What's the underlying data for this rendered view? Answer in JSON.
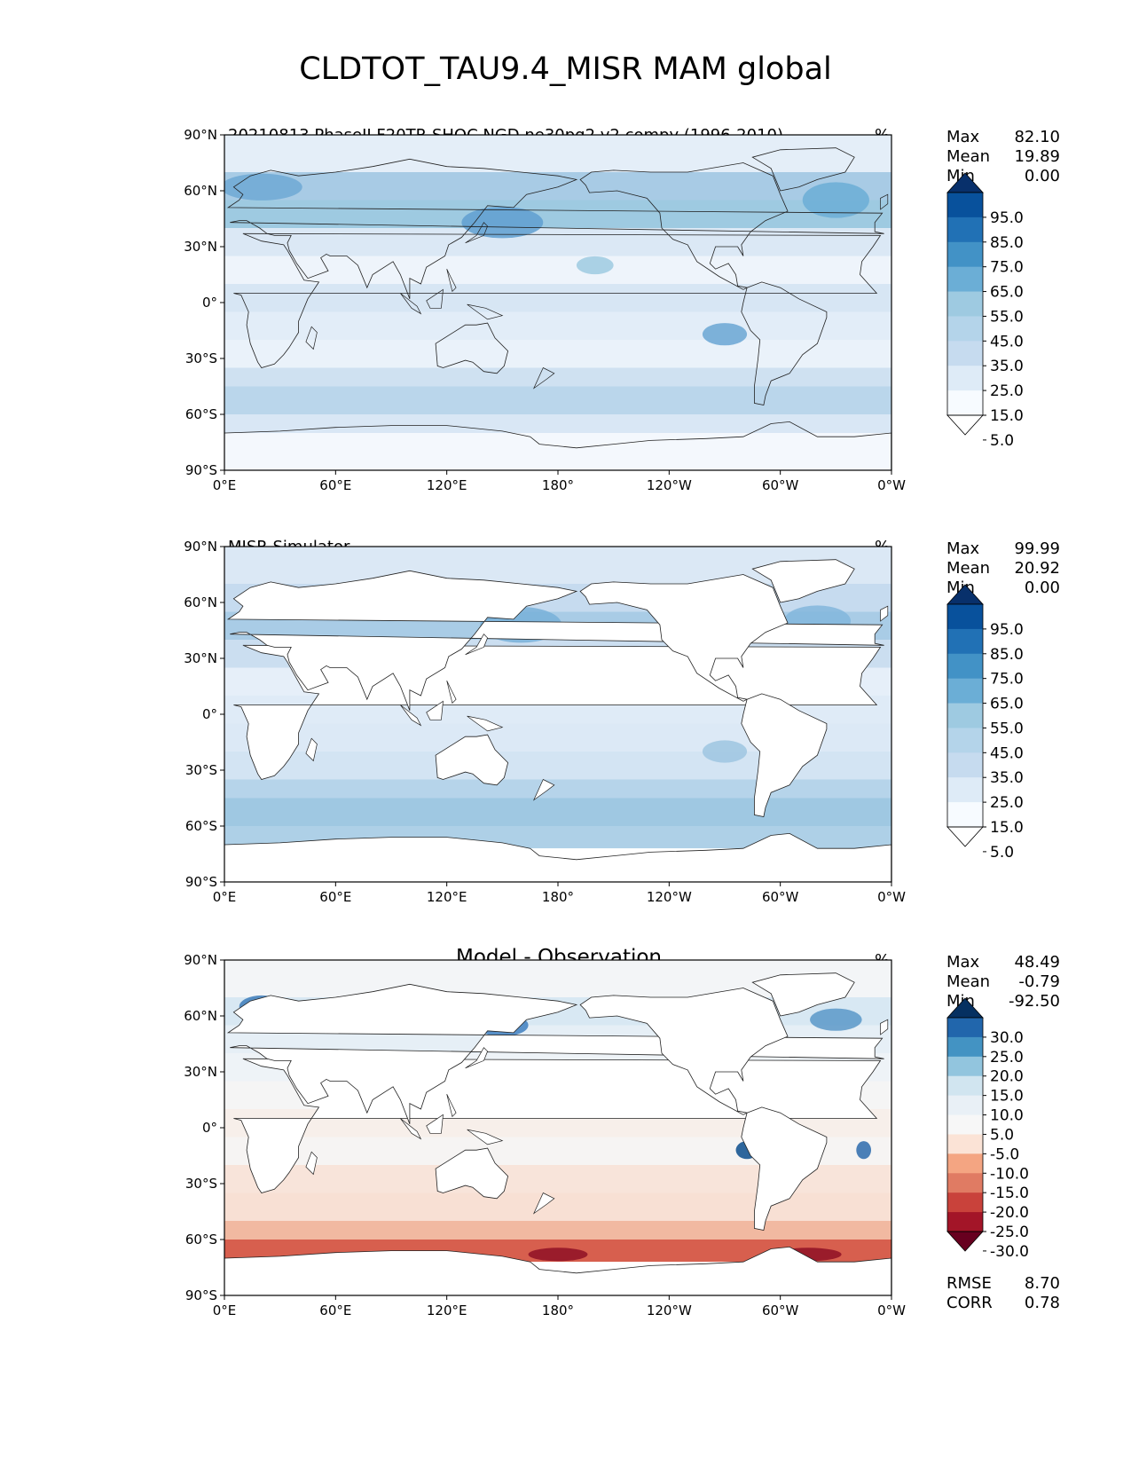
{
  "title": "CLDTOT_TAU9.4_MISR MAM global",
  "axes": {
    "lat_labels": [
      "90°N",
      "60°N",
      "30°N",
      "0°",
      "30°S",
      "60°S",
      "90°S"
    ],
    "lon_labels": [
      "0°E",
      "60°E",
      "120°E",
      "180°",
      "120°W",
      "60°W",
      "0°W"
    ]
  },
  "panels": [
    {
      "subtitle": "20210813.PhaseII.F20TR-SHOC.NGD.ne30pg2.v2.compy (1996-2010)",
      "units": "%",
      "stats": [
        {
          "label": "Max",
          "value": "82.10"
        },
        {
          "label": "Mean",
          "value": "19.89"
        },
        {
          "label": "Min",
          "value": "0.00"
        }
      ],
      "colorbar": {
        "labels": [
          "95.0",
          "85.0",
          "75.0",
          "65.0",
          "55.0",
          "45.0",
          "35.0",
          "25.0",
          "15.0",
          "5.0"
        ],
        "colors": [
          "#08306b",
          "#08519c",
          "#2171b5",
          "#4292c6",
          "#6baed6",
          "#9ecae1",
          "#b4d4ea",
          "#c6dbef",
          "#deebf7",
          "#f7fbff",
          "#ffffff"
        ]
      }
    },
    {
      "subtitle": "MISR Simulator",
      "units": "%",
      "stats": [
        {
          "label": "Max",
          "value": "99.99"
        },
        {
          "label": "Mean",
          "value": "20.92"
        },
        {
          "label": "Min",
          "value": "0.00"
        }
      ],
      "colorbar": {
        "labels": [
          "95.0",
          "85.0",
          "75.0",
          "65.0",
          "55.0",
          "45.0",
          "35.0",
          "25.0",
          "15.0",
          "5.0"
        ],
        "colors": [
          "#08306b",
          "#08519c",
          "#2171b5",
          "#4292c6",
          "#6baed6",
          "#9ecae1",
          "#b4d4ea",
          "#c6dbef",
          "#deebf7",
          "#f7fbff",
          "#ffffff"
        ]
      }
    },
    {
      "subtitle": "Model - Observation",
      "units": "%",
      "stats": [
        {
          "label": "Max",
          "value": "48.49"
        },
        {
          "label": "Mean",
          "value": "-0.79"
        },
        {
          "label": "Min",
          "value": "-92.50"
        }
      ],
      "extra_stats": [
        {
          "label": "RMSE",
          "value": "8.70"
        },
        {
          "label": "CORR",
          "value": "0.78"
        }
      ],
      "colorbar": {
        "labels": [
          "30.0",
          "25.0",
          "20.0",
          "15.0",
          "10.0",
          "5.0",
          "-5.0",
          "-10.0",
          "-15.0",
          "-20.0",
          "-25.0",
          "-30.0"
        ],
        "colors": [
          "#053061",
          "#2166ac",
          "#4393c3",
          "#92c5de",
          "#d1e5f0",
          "#e9f0f6",
          "#f7f7f7",
          "#fbe3d6",
          "#f4a582",
          "#e07b63",
          "#c9423b",
          "#a31528",
          "#67001f"
        ]
      }
    }
  ]
}
